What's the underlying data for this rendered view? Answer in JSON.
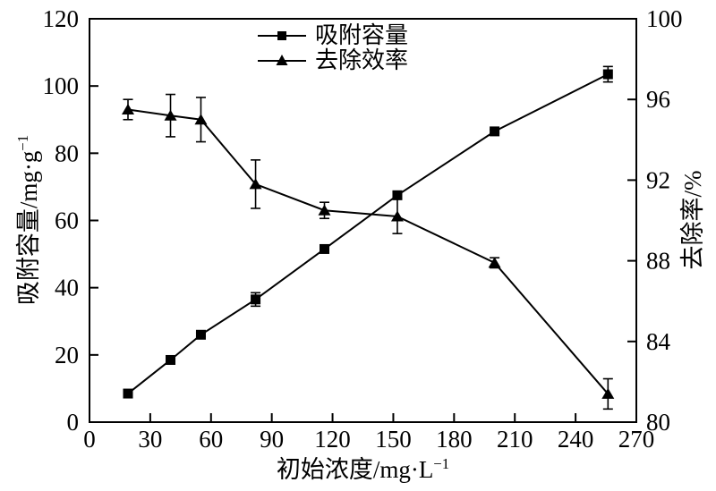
{
  "figure": {
    "x_axis": {
      "label_base": "初始浓度/mg·L",
      "label_sup": "−1",
      "min": 0,
      "max": 270,
      "tick_step": 30,
      "tick_labels": [
        "0",
        "30",
        "60",
        "90",
        "120",
        "150",
        "180",
        "210",
        "240",
        "270"
      ]
    },
    "left_axis": {
      "label_base": "吸附容量/mg·g",
      "label_sup": "−1",
      "min": 0,
      "max": 120,
      "tick_step": 20,
      "tick_labels": [
        "0",
        "20",
        "40",
        "60",
        "80",
        "100",
        "120"
      ]
    },
    "right_axis": {
      "label": "去除率/%",
      "min": 80,
      "max": 100,
      "tick_step": 4,
      "tick_labels": [
        "80",
        "84",
        "88",
        "92",
        "96",
        "100"
      ]
    },
    "legend": [
      {
        "label": "吸附容量",
        "marker": "square"
      },
      {
        "label": "去除效率",
        "marker": "triangle"
      }
    ]
  },
  "chart_data": {
    "type": "line",
    "title": "",
    "xlabel": "初始浓度/mg·L⁻¹",
    "ylabel_left": "吸附容量/mg·g⁻¹",
    "ylabel_right": "去除率/%",
    "xlim": [
      0,
      270
    ],
    "ylim_left": [
      0,
      120
    ],
    "ylim_right": [
      80,
      100
    ],
    "grid": false,
    "legend_position": "inside-top-center",
    "line_color": "#000000",
    "x": [
      19,
      40,
      55,
      82,
      116,
      152,
      200,
      256
    ],
    "series": [
      {
        "name": "吸附容量",
        "axis": "left",
        "marker": "square",
        "values": [
          8.5,
          18.5,
          26,
          36.5,
          51.5,
          67.5,
          86.5,
          103.5
        ],
        "errors": [
          0.4,
          0.4,
          0.5,
          2.0,
          0.9,
          1.0,
          0.5,
          2.3
        ]
      },
      {
        "name": "去除效率",
        "axis": "right",
        "marker": "triangle",
        "values": [
          95.5,
          95.2,
          95.0,
          91.8,
          90.5,
          90.2,
          87.9,
          81.4
        ],
        "errors": [
          0.5,
          1.05,
          1.1,
          1.2,
          0.4,
          0.85,
          0.25,
          0.75
        ]
      }
    ]
  }
}
